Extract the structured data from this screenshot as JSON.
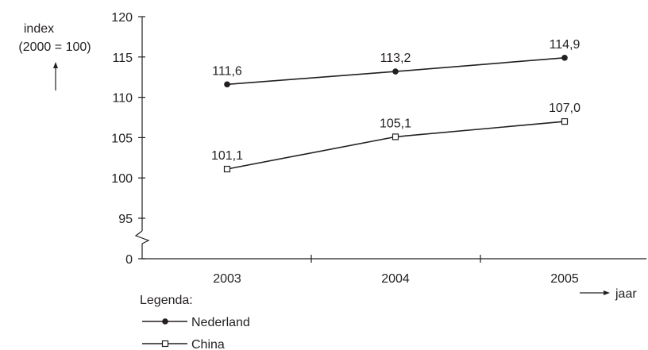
{
  "chart_data": {
    "type": "line",
    "ylabel_lines": [
      "index",
      "(2000 = 100)"
    ],
    "xlabel": "jaar",
    "categories": [
      "2003",
      "2004",
      "2005"
    ],
    "y_ticks": [
      "0",
      "95",
      "100",
      "105",
      "110",
      "115",
      "120"
    ],
    "ylim": [
      95,
      120
    ],
    "axis_break": true,
    "grid": false,
    "legend_title": "Legenda:",
    "legend_position": "bottom-left",
    "series": [
      {
        "name": "Nederland",
        "marker": "filled-circle",
        "values": [
          111.6,
          113.2,
          114.9
        ],
        "labels": [
          "111,6",
          "113,2",
          "114,9"
        ]
      },
      {
        "name": "China",
        "marker": "open-square",
        "values": [
          101.1,
          105.1,
          107.0
        ],
        "labels": [
          "101,1",
          "105,1",
          "107,0"
        ]
      }
    ]
  }
}
